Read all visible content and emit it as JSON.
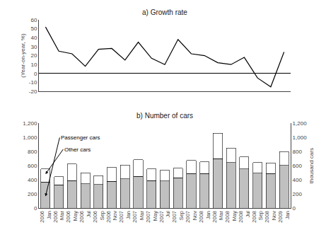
{
  "chart_data": [
    {
      "type": "line",
      "title": "a) Growth rate",
      "ylabel": "(Year-on-year, %)",
      "categories": [
        null,
        null,
        null,
        null,
        null,
        null,
        null,
        null,
        null,
        null,
        null,
        null,
        null,
        null,
        null,
        null,
        null,
        null,
        null
      ],
      "values": [
        52,
        25,
        22,
        8,
        27,
        28,
        15,
        35,
        17,
        10,
        38,
        22,
        20,
        12,
        10,
        18,
        -5,
        -15,
        24
      ],
      "color": "#000000",
      "ylim": [
        -20,
        60
      ],
      "yticks": [
        -20,
        -10,
        0,
        10,
        20,
        30,
        40,
        50,
        60
      ],
      "grid": false,
      "tick_labels": "y"
    },
    {
      "type": "bar",
      "stacked": true,
      "title": "b) Number of cars",
      "categories": [
        "2006\nJan",
        "2006\nMar",
        "2006\nMay",
        "2006\nJul",
        "2006\nSep",
        "2006\nNov",
        "2007\nJan",
        "2007\nMar",
        "2007\nMay",
        "2007\nJul",
        "2007\nSep",
        "2007\nNov",
        "2008\nJan",
        "2008\nMar",
        "2008\nMay",
        "2008\nJul",
        "2008\nSep",
        "2008\nNov",
        "2009\nJan"
      ],
      "series": [
        {
          "name": "Passenger cars",
          "color": "#c0c0c0",
          "values": [
            370,
            330,
            390,
            345,
            335,
            380,
            415,
            450,
            390,
            385,
            430,
            490,
            490,
            700,
            645,
            555,
            495,
            488,
            605
          ]
        },
        {
          "name": "Other cars",
          "color": "#ffffff",
          "values": [
            185,
            115,
            235,
            155,
            125,
            195,
            195,
            235,
            165,
            150,
            135,
            185,
            165,
            360,
            205,
            170,
            150,
            150,
            195
          ]
        }
      ],
      "ylim": [
        0,
        1200
      ],
      "yticks": [
        0,
        200,
        400,
        600,
        800,
        {
          "value": 1000,
          "label": "1,000"
        },
        {
          "value": 1200,
          "label": "1,200"
        }
      ],
      "y2lim": [
        0,
        1200
      ],
      "y2ticks": [
        0,
        200,
        400,
        600,
        800,
        {
          "value": 1000,
          "label": "1,000"
        },
        {
          "value": 1200,
          "label": "1,200"
        }
      ],
      "y2label": "thousand cars",
      "grid": false
    }
  ]
}
